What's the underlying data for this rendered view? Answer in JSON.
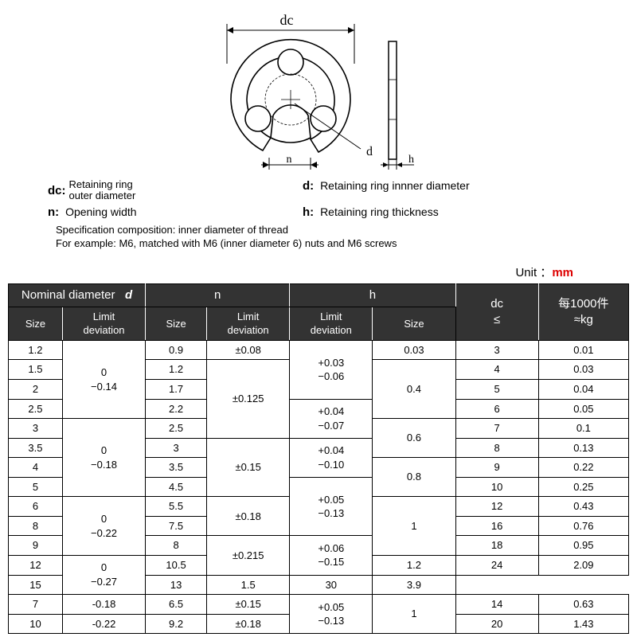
{
  "diagram": {
    "dc_label": "dc",
    "d_label": "d",
    "n_label": "n",
    "h_label": "h"
  },
  "legend": {
    "dc_sym": "dc:",
    "dc_text": "Retaining ring\nouter diameter",
    "d_sym": "d:",
    "d_text": "Retaining ring innner diameter",
    "n_sym": "n:",
    "n_text": "Opening width",
    "h_sym": "h:",
    "h_text": "Retaining ring thickness",
    "spec": "Specification composition: inner diameter of thread",
    "example": "For example: M6, matched with M6 (inner diameter 6) nuts and M6 screws"
  },
  "unit": {
    "label": "Unit ：",
    "value": "mm"
  },
  "table": {
    "header1": {
      "nominal": "Nominal diameter",
      "d": "d",
      "n": "n",
      "h": "h",
      "dc": "dc\n≤",
      "kg": "每1000件\n≈kg"
    },
    "header2": {
      "size": "Size",
      "limit": "Limit\ndeviation"
    },
    "colors": {
      "header_bg": "#333333",
      "header_fg": "#ffffff",
      "border": "#000000",
      "unit_color": "#d00000"
    },
    "fontsize_cell": 13,
    "rows": [
      {
        "d_size": "1.2",
        "d_lim": "0\n−0.14",
        "d_lim_span": 4,
        "n_size": "0.9",
        "n_lim": "±0.08",
        "n_lim_span": 1,
        "h_lim": "+0.03\n−0.06",
        "h_lim_span": 3,
        "h_size": "0.03",
        "h_size_span": 1,
        "dc": "3",
        "kg": "0.01"
      },
      {
        "d_size": "1.5",
        "n_size": "1.2",
        "n_lim": "±0.125",
        "n_lim_span": 4,
        "h_size": "0.4",
        "h_size_span": 3,
        "dc": "4",
        "kg": "0.03"
      },
      {
        "d_size": "2",
        "n_size": "1.7",
        "dc": "5",
        "kg": "0.04"
      },
      {
        "d_size": "2.5",
        "n_size": "2.2",
        "h_lim": "+0.04\n−0.07",
        "h_lim_span": 2,
        "dc": "6",
        "kg": "0.05"
      },
      {
        "d_size": "3",
        "d_lim": "0\n−0.18",
        "d_lim_span": 4,
        "n_size": "2.5",
        "h_size": "0.6",
        "h_size_span": 2,
        "dc": "7",
        "kg": "0.1"
      },
      {
        "d_size": "3.5",
        "n_size": "3",
        "n_lim": "±0.15",
        "n_lim_span": 3,
        "h_lim": "+0.04\n−0.10",
        "h_lim_span": 2,
        "dc": "8",
        "kg": "0.13"
      },
      {
        "d_size": "4",
        "n_size": "3.5",
        "h_size": "0.8",
        "h_size_span": 2,
        "dc": "9",
        "kg": "0.22"
      },
      {
        "d_size": "5",
        "n_size": "4.5",
        "h_lim": "+0.05\n−0.13",
        "h_lim_span": 3,
        "dc": "10",
        "kg": "0.25"
      },
      {
        "d_size": "6",
        "d_lim": "0\n−0.22",
        "d_lim_span": 3,
        "n_size": "5.5",
        "n_lim": "±0.18",
        "n_lim_span": 2,
        "h_size": "1",
        "h_size_span": 3,
        "dc": "12",
        "kg": "0.43"
      },
      {
        "d_size": "8",
        "n_size": "7.5",
        "dc": "16",
        "kg": "0.76"
      },
      {
        "d_size": "9",
        "n_size": "8",
        "n_lim": "±0.215",
        "n_lim_span": 2,
        "h_lim": "+0.06\n−0.15",
        "h_lim_span": 2,
        "dc": "18",
        "kg": "0.95"
      },
      {
        "d_size": "12",
        "d_lim": "0\n−0.27",
        "d_lim_span": 2,
        "n_size": "10.5",
        "h_size": "1.2",
        "h_size_span": 1,
        "dc": "24",
        "kg": "2.09"
      },
      {
        "d_size": "15",
        "n_size": "13",
        "h_size": "1.5",
        "h_size_span": 1,
        "dc": "30",
        "kg": "3.9"
      },
      {
        "d_size": "7",
        "d_lim": "-0.18",
        "d_lim_span": 1,
        "n_size": "6.5",
        "n_lim": "±0.15",
        "n_lim_span": 1,
        "h_lim": "+0.05\n−0.13",
        "h_lim_span": 2,
        "h_size": "1",
        "h_size_span": 2,
        "dc": "14",
        "kg": "0.63"
      },
      {
        "d_size": "10",
        "d_lim": "-0.22",
        "d_lim_span": 1,
        "n_size": "9.2",
        "n_lim": "±0.18",
        "n_lim_span": 1,
        "dc": "20",
        "kg": "1.43"
      }
    ]
  }
}
